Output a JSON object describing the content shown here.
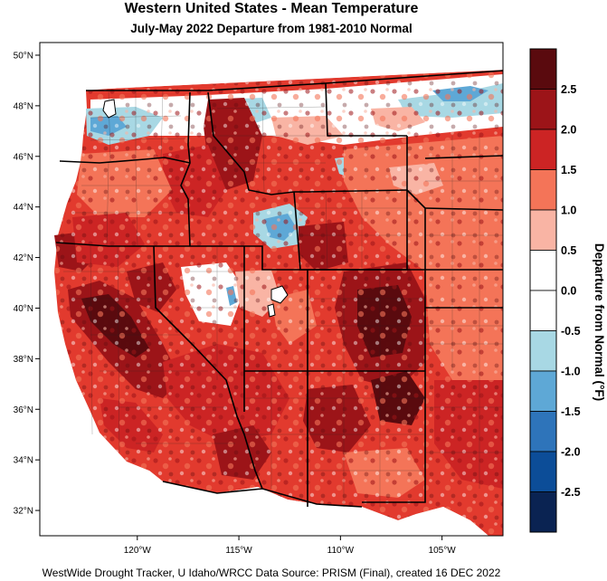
{
  "title": "Western United States - Mean Temperature",
  "subtitle": "July-May 2022  Departure from 1981-2010 Normal",
  "footer": "WestWide Drought Tracker, U Idaho/WRCC Data Source: PRISM (Final), created 16 DEC 2022",
  "map": {
    "lat_range": [
      31,
      50.5
    ],
    "lon_range": [
      -124.8,
      -102
    ],
    "lat_ticks": [
      {
        "value": 50,
        "label": "50°N"
      },
      {
        "value": 48,
        "label": "48°N"
      },
      {
        "value": 46,
        "label": "46°N"
      },
      {
        "value": 44,
        "label": "44°N"
      },
      {
        "value": 42,
        "label": "42°N"
      },
      {
        "value": 40,
        "label": "40°N"
      },
      {
        "value": 38,
        "label": "38°N"
      },
      {
        "value": 36,
        "label": "36°N"
      },
      {
        "value": 34,
        "label": "34°N"
      },
      {
        "value": 32,
        "label": "32°N"
      }
    ],
    "lon_ticks": [
      {
        "value": -120,
        "label": "120°W"
      },
      {
        "value": -115,
        "label": "115°W"
      },
      {
        "value": -110,
        "label": "110°W"
      },
      {
        "value": -105,
        "label": "105°W"
      }
    ]
  },
  "colorbar": {
    "title": "Departure from Normal (°F)",
    "bins": [
      {
        "min": 2.5,
        "max": 3.0,
        "color": "#5a0a0e"
      },
      {
        "min": 2.0,
        "max": 2.5,
        "color": "#9c1418"
      },
      {
        "min": 1.5,
        "max": 2.0,
        "color": "#cc2424"
      },
      {
        "min": 1.0,
        "max": 1.5,
        "color": "#f47458"
      },
      {
        "min": 0.5,
        "max": 1.0,
        "color": "#f9b4a4"
      },
      {
        "min": 0.0,
        "max": 0.5,
        "color": "#ffffff"
      },
      {
        "min": -0.5,
        "max": 0.0,
        "color": "#ffffff"
      },
      {
        "min": -1.0,
        "max": -0.5,
        "color": "#a8d8e4"
      },
      {
        "min": -1.5,
        "max": -1.0,
        "color": "#5ea8d6"
      },
      {
        "min": -2.0,
        "max": -1.5,
        "color": "#2e74ba"
      },
      {
        "min": -2.5,
        "max": -2.0,
        "color": "#0c4d98"
      },
      {
        "min": -3.0,
        "max": -2.5,
        "color": "#0a2352"
      }
    ],
    "ticks": [
      "2.5",
      "2.0",
      "1.5",
      "1.0",
      "0.5",
      "0.0",
      "-0.5",
      "-1.0",
      "-1.5",
      "-2.0",
      "-2.5"
    ]
  }
}
